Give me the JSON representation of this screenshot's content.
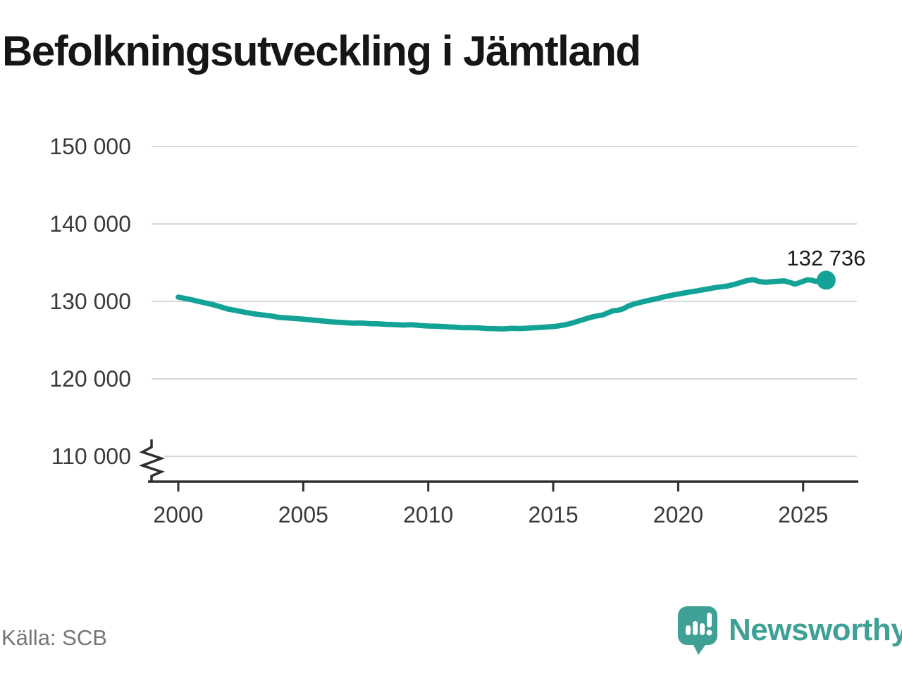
{
  "title": "Befolkningsutveckling i Jämtland",
  "footer": {
    "source": "Källa: SCB",
    "brand": "Newsworthy"
  },
  "colors": {
    "accent": "#12a296",
    "grid": "#d8d8d8",
    "axis": "#2e2e2e",
    "tick_text": "#3a3a3a",
    "muted_text": "#757575",
    "brand_teal": "#3fa096"
  },
  "chart_data": {
    "type": "line",
    "title": "Befolkningsutveckling i Jämtland",
    "xlabel": "",
    "ylabel": "",
    "xlim": [
      2000,
      2026.3
    ],
    "ylim": [
      110000,
      150000
    ],
    "axis_break": true,
    "grid": "horizontal",
    "legend": "none",
    "y_ticks": [
      {
        "value": 110000,
        "label": "110 000"
      },
      {
        "value": 120000,
        "label": "120 000"
      },
      {
        "value": 130000,
        "label": "130 000"
      },
      {
        "value": 140000,
        "label": "140 000"
      },
      {
        "value": 150000,
        "label": "150 000"
      }
    ],
    "x_ticks": [
      {
        "value": 2000,
        "label": "2000"
      },
      {
        "value": 2005,
        "label": "2005"
      },
      {
        "value": 2010,
        "label": "2010"
      },
      {
        "value": 2015,
        "label": "2015"
      },
      {
        "value": 2020,
        "label": "2020"
      },
      {
        "value": 2025,
        "label": "2025"
      }
    ],
    "end_label": "132 736",
    "end_value": 132736,
    "series": [
      {
        "name": "Befolkning i Jämtland",
        "points": [
          [
            2000.0,
            130550
          ],
          [
            2000.17,
            130450
          ],
          [
            2000.33,
            130340
          ],
          [
            2000.5,
            130240
          ],
          [
            2000.75,
            130040
          ],
          [
            2001.0,
            129860
          ],
          [
            2001.25,
            129680
          ],
          [
            2001.5,
            129480
          ],
          [
            2001.75,
            129240
          ],
          [
            2002.0,
            129000
          ],
          [
            2002.25,
            128850
          ],
          [
            2002.5,
            128700
          ],
          [
            2002.75,
            128550
          ],
          [
            2003.0,
            128400
          ],
          [
            2003.25,
            128300
          ],
          [
            2003.5,
            128200
          ],
          [
            2003.75,
            128100
          ],
          [
            2004.0,
            127950
          ],
          [
            2004.33,
            127870
          ],
          [
            2004.67,
            127780
          ],
          [
            2005.0,
            127700
          ],
          [
            2005.33,
            127600
          ],
          [
            2005.67,
            127500
          ],
          [
            2006.0,
            127400
          ],
          [
            2006.33,
            127320
          ],
          [
            2006.67,
            127250
          ],
          [
            2007.0,
            127180
          ],
          [
            2007.33,
            127210
          ],
          [
            2007.67,
            127130
          ],
          [
            2008.0,
            127100
          ],
          [
            2008.33,
            127040
          ],
          [
            2008.67,
            127000
          ],
          [
            2009.0,
            126950
          ],
          [
            2009.33,
            126990
          ],
          [
            2009.67,
            126890
          ],
          [
            2010.0,
            126820
          ],
          [
            2010.33,
            126790
          ],
          [
            2010.67,
            126740
          ],
          [
            2011.0,
            126680
          ],
          [
            2011.33,
            126620
          ],
          [
            2011.67,
            126600
          ],
          [
            2012.0,
            126580
          ],
          [
            2012.33,
            126500
          ],
          [
            2012.67,
            126480
          ],
          [
            2013.0,
            126450
          ],
          [
            2013.33,
            126520
          ],
          [
            2013.67,
            126490
          ],
          [
            2014.0,
            126550
          ],
          [
            2014.33,
            126610
          ],
          [
            2014.67,
            126680
          ],
          [
            2015.0,
            126750
          ],
          [
            2015.25,
            126850
          ],
          [
            2015.5,
            127000
          ],
          [
            2015.75,
            127200
          ],
          [
            2016.0,
            127450
          ],
          [
            2016.25,
            127700
          ],
          [
            2016.5,
            127950
          ],
          [
            2016.75,
            128120
          ],
          [
            2017.0,
            128260
          ],
          [
            2017.2,
            128550
          ],
          [
            2017.4,
            128790
          ],
          [
            2017.6,
            128850
          ],
          [
            2017.8,
            129050
          ],
          [
            2018.0,
            129400
          ],
          [
            2018.25,
            129680
          ],
          [
            2018.5,
            129880
          ],
          [
            2018.75,
            130080
          ],
          [
            2019.0,
            130250
          ],
          [
            2019.25,
            130440
          ],
          [
            2019.5,
            130640
          ],
          [
            2019.75,
            130800
          ],
          [
            2020.0,
            130950
          ],
          [
            2020.25,
            131090
          ],
          [
            2020.5,
            131240
          ],
          [
            2020.75,
            131350
          ],
          [
            2021.0,
            131500
          ],
          [
            2021.25,
            131650
          ],
          [
            2021.5,
            131790
          ],
          [
            2021.75,
            131890
          ],
          [
            2022.0,
            132000
          ],
          [
            2022.25,
            132200
          ],
          [
            2022.5,
            132450
          ],
          [
            2022.75,
            132680
          ],
          [
            2023.0,
            132800
          ],
          [
            2023.25,
            132560
          ],
          [
            2023.5,
            132460
          ],
          [
            2023.75,
            132550
          ],
          [
            2024.0,
            132600
          ],
          [
            2024.25,
            132650
          ],
          [
            2024.5,
            132420
          ],
          [
            2024.67,
            132220
          ],
          [
            2024.83,
            132380
          ],
          [
            2025.0,
            132600
          ],
          [
            2025.17,
            132790
          ],
          [
            2025.33,
            132740
          ],
          [
            2025.5,
            132580
          ],
          [
            2025.67,
            132660
          ],
          [
            2025.92,
            132736
          ]
        ]
      }
    ]
  }
}
